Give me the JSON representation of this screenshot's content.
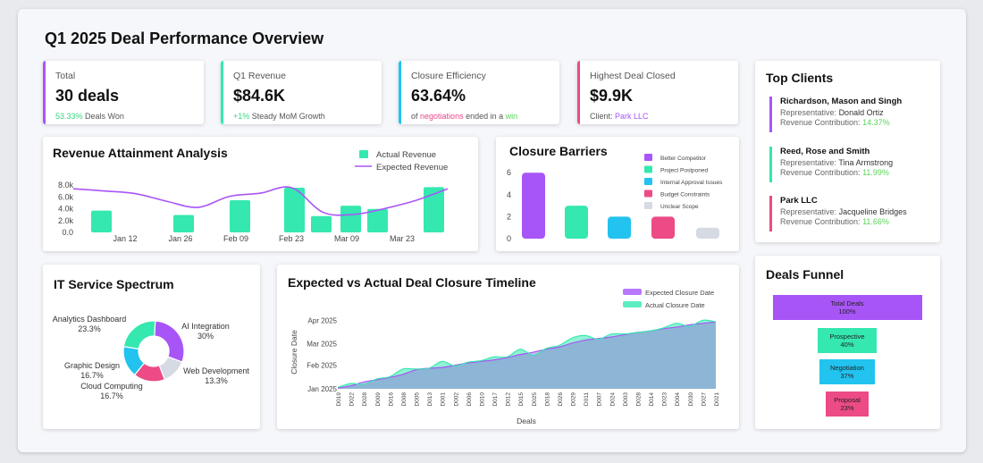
{
  "dashboard": {
    "title": "Q1 2025 Deal Performance Overview"
  },
  "kpis": [
    {
      "label": "Total",
      "value": "30 deals",
      "sub_highlight": "53.33%",
      "sub_text": "Deals Won",
      "color": "#a855f7"
    },
    {
      "label": "Q1 Revenue",
      "value": "$84.6K",
      "sub_highlight": "+1%",
      "sub_text": "Steady MoM Growth",
      "color": "#34e8b0"
    },
    {
      "label": "Closure Efficiency",
      "value": "63.64%",
      "sub_pre": "of",
      "sub_hl1": "negotiations",
      "sub_mid": "ended in a",
      "sub_hl2": "win",
      "color": "#22c3ee"
    },
    {
      "label": "Highest Deal Closed",
      "value": "$9.9K",
      "sub_pre": "Client:",
      "sub_highlight": "Park LLC",
      "color": "#ec4b85"
    }
  ],
  "top_clients": {
    "title": "Top Clients",
    "rep_label": "Representative:",
    "contrib_label": "Revenue Contribution:",
    "items": [
      {
        "name": "Richardson, Mason and Singh",
        "rep": "Donald Ortiz",
        "contribution": "14.37%",
        "color": "#a855f7"
      },
      {
        "name": "Reed, Rose and Smith",
        "rep": "Tina Armstrong",
        "contribution": "11.99%",
        "color": "#34e8b0"
      },
      {
        "name": "Park LLC",
        "rep": "Jacqueline Bridges",
        "contribution": "11.66%",
        "color": "#ec4b85"
      }
    ]
  },
  "chart_data": [
    {
      "id": "revenue",
      "type": "bar+line",
      "title": "Revenue Attainment Analysis",
      "legend": [
        "Actual Revenue",
        "Expected Revenue"
      ],
      "ylim": [
        0,
        10000
      ],
      "yticks": [
        "0.0",
        "2.0k",
        "4.0k",
        "6.0k",
        "8.0k"
      ],
      "xticks": [
        "Jan 12",
        "Jan 26",
        "Feb 09",
        "Feb 23",
        "Mar 09",
        "Mar 23"
      ],
      "actual": [
        4000,
        3200,
        5900,
        8200,
        3000,
        4900,
        4300,
        8300
      ],
      "expected": [
        8000,
        7600,
        7100,
        5700,
        4600,
        6600,
        7200,
        8200,
        3700,
        3300,
        4400,
        5900,
        8000
      ]
    },
    {
      "id": "barriers",
      "type": "bar",
      "title": "Closure Barriers",
      "categories": [
        "Better Competitor",
        "Project Postponed",
        "Internal Approval Issues",
        "Budget Constraints",
        "Unclear Scope"
      ],
      "values": [
        6,
        3,
        2,
        2,
        1
      ],
      "colors": [
        "#a855f7",
        "#34e8b0",
        "#22c3ee",
        "#ec4b85",
        "#d6dae3"
      ],
      "yticks": [
        "0",
        "2",
        "4",
        "6"
      ],
      "ylim": [
        0,
        7
      ]
    },
    {
      "id": "services",
      "type": "pie",
      "title": "IT Service Spectrum",
      "slices": [
        {
          "label": "AI Integration",
          "pct": "30%",
          "value": 30,
          "color": "#a855f7"
        },
        {
          "label": "Web Development",
          "pct": "13.3%",
          "value": 13.3,
          "color": "#d6dae3"
        },
        {
          "label": "Cloud Computing",
          "pct": "16.7%",
          "value": 16.7,
          "color": "#ec4b85"
        },
        {
          "label": "Graphic Design",
          "pct": "16.7%",
          "value": 16.7,
          "color": "#22c3ee"
        },
        {
          "label": "Analytics Dashboard",
          "pct": "23.3%",
          "value": 23.3,
          "color": "#34e8b0"
        }
      ]
    },
    {
      "id": "timeline",
      "type": "area",
      "title": "Expected vs Actual Deal Closure Timeline",
      "legend": [
        "Expected Closure Date",
        "Actual Closure Date"
      ],
      "xlabel": "Deals",
      "ylabel": "Closure Date",
      "yticks": [
        "Jan 2025",
        "Feb 2025",
        "Mar 2025",
        "Apr 2025"
      ],
      "ylim_days": [
        0,
        95
      ],
      "x": [
        "D019",
        "D022",
        "D028",
        "D009",
        "D016",
        "D008",
        "D005",
        "D013",
        "D001",
        "D002",
        "D006",
        "D010",
        "D017",
        "D012",
        "D015",
        "D025",
        "D018",
        "D026",
        "D029",
        "D011",
        "D007",
        "D024",
        "D003",
        "D028",
        "D014",
        "D023",
        "D004",
        "D030",
        "D027",
        "D021"
      ],
      "expected_days": [
        1,
        4,
        9,
        12,
        15,
        19,
        25,
        27,
        28,
        31,
        34,
        36,
        38,
        41,
        45,
        48,
        52,
        55,
        60,
        64,
        66,
        68,
        71,
        74,
        76,
        79,
        81,
        84,
        86,
        88
      ],
      "actual_days": [
        2,
        7,
        6,
        13,
        16,
        26,
        26,
        27,
        36,
        30,
        35,
        37,
        42,
        42,
        52,
        44,
        53,
        57,
        67,
        70,
        65,
        72,
        72,
        74,
        76,
        80,
        86,
        82,
        90,
        88
      ]
    },
    {
      "id": "funnel",
      "type": "funnel",
      "title": "Deals Funnel",
      "stages": [
        {
          "label": "Total Deals",
          "pct": "100%",
          "value": 100,
          "color": "#a855f7"
        },
        {
          "label": "Prospective",
          "pct": "40%",
          "value": 40,
          "color": "#34e8b0"
        },
        {
          "label": "Negotiation",
          "pct": "37%",
          "value": 37,
          "color": "#22c3ee"
        },
        {
          "label": "Proposal",
          "pct": "23%",
          "value": 23,
          "color": "#ec4b85"
        }
      ]
    }
  ]
}
